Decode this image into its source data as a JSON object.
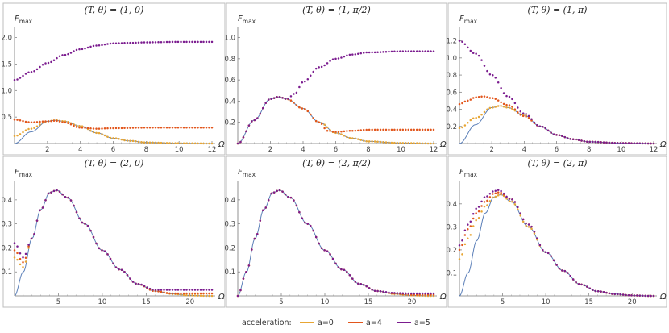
{
  "legend": {
    "title": "acceleration:",
    "entries": [
      {
        "label": "a=0",
        "color": "#E8A634"
      },
      {
        "label": "a=4",
        "color": "#E2561C"
      },
      {
        "label": "a=5",
        "color": "#7B1C8F"
      }
    ]
  },
  "reference_color": "#5B7FB8",
  "chart_data": [
    {
      "type": "line",
      "title": "(T, θ) = (1, 0)",
      "ylabel": "F",
      "ylabel_sub": "max",
      "xlabel": "Ω",
      "xlim": [
        0,
        12
      ],
      "ylim": [
        0,
        2.1
      ],
      "xticks": [
        "2",
        "4",
        "6",
        "8",
        "10",
        "12"
      ],
      "yticks": [
        "0.5",
        "1.0",
        "1.5",
        "2.0"
      ],
      "series": [
        {
          "name": "reference",
          "x": [
            0,
            1,
            2,
            2.5,
            3,
            4,
            5,
            6,
            7,
            8,
            10,
            12
          ],
          "values": [
            0,
            0.22,
            0.42,
            0.44,
            0.42,
            0.33,
            0.2,
            0.1,
            0.05,
            0.02,
            0.005,
            0
          ]
        },
        {
          "name": "a=0",
          "x": [
            0,
            1,
            2,
            2.5,
            3,
            4,
            5,
            6,
            7,
            8,
            10,
            12
          ],
          "values": [
            0.14,
            0.28,
            0.42,
            0.44,
            0.42,
            0.33,
            0.2,
            0.1,
            0.05,
            0.02,
            0.005,
            0
          ]
        },
        {
          "name": "a=4",
          "x": [
            0,
            1,
            2,
            2.5,
            3,
            4,
            5,
            6,
            8,
            10,
            12
          ],
          "values": [
            0.45,
            0.4,
            0.42,
            0.43,
            0.4,
            0.3,
            0.28,
            0.29,
            0.3,
            0.3,
            0.3
          ]
        },
        {
          "name": "a=5",
          "x": [
            0,
            1,
            2,
            3,
            4,
            5,
            6,
            7,
            8,
            10,
            12
          ],
          "values": [
            1.2,
            1.35,
            1.52,
            1.67,
            1.78,
            1.85,
            1.89,
            1.9,
            1.91,
            1.92,
            1.92
          ]
        }
      ]
    },
    {
      "type": "line",
      "title": "(T, θ) = (1, π/2)",
      "ylabel": "F",
      "ylabel_sub": "max",
      "xlabel": "Ω",
      "xlim": [
        0,
        12
      ],
      "ylim": [
        0,
        1.05
      ],
      "xticks": [
        "2",
        "4",
        "6",
        "8",
        "10",
        "12"
      ],
      "yticks": [
        "0.2",
        "0.4",
        "0.6",
        "0.8",
        "1.0"
      ],
      "series": [
        {
          "name": "reference",
          "x": [
            0,
            1,
            2,
            2.5,
            3,
            4,
            5,
            6,
            7,
            8,
            10,
            12
          ],
          "values": [
            0,
            0.22,
            0.42,
            0.44,
            0.42,
            0.33,
            0.2,
            0.1,
            0.05,
            0.02,
            0.005,
            0
          ]
        },
        {
          "name": "a=0",
          "x": [
            0,
            1,
            2,
            2.5,
            3,
            4,
            5,
            6,
            7,
            8,
            10,
            12
          ],
          "values": [
            0,
            0.22,
            0.42,
            0.44,
            0.42,
            0.33,
            0.2,
            0.1,
            0.05,
            0.02,
            0.005,
            0
          ]
        },
        {
          "name": "a=4",
          "x": [
            0,
            1,
            2,
            2.5,
            3,
            4,
            5,
            5.5,
            6,
            7,
            8,
            10,
            12
          ],
          "values": [
            0,
            0.22,
            0.42,
            0.44,
            0.42,
            0.33,
            0.2,
            0.12,
            0.11,
            0.12,
            0.13,
            0.13,
            0.13
          ]
        },
        {
          "name": "a=5",
          "x": [
            0,
            1,
            2,
            2.5,
            3,
            3.5,
            4,
            5,
            6,
            7,
            8,
            10,
            12
          ],
          "values": [
            0,
            0.22,
            0.42,
            0.44,
            0.42,
            0.47,
            0.58,
            0.72,
            0.8,
            0.84,
            0.86,
            0.87,
            0.87
          ]
        }
      ]
    },
    {
      "type": "line",
      "title": "(T, θ) = (1, π)",
      "ylabel": "F",
      "ylabel_sub": "max",
      "xlabel": "Ω",
      "xlim": [
        0,
        12
      ],
      "ylim": [
        0,
        1.3
      ],
      "xticks": [
        "2",
        "4",
        "6",
        "8",
        "10",
        "12"
      ],
      "yticks": [
        "0.2",
        "0.4",
        "0.6",
        "0.8",
        "1.0",
        "1.2"
      ],
      "series": [
        {
          "name": "reference",
          "x": [
            0,
            1,
            2,
            2.5,
            3,
            4,
            5,
            6,
            7,
            8,
            10,
            12
          ],
          "values": [
            0,
            0.22,
            0.42,
            0.44,
            0.42,
            0.33,
            0.2,
            0.1,
            0.05,
            0.02,
            0.005,
            0
          ]
        },
        {
          "name": "a=0",
          "x": [
            0,
            1,
            2,
            2.5,
            3,
            4,
            5,
            6,
            7,
            8,
            10,
            12
          ],
          "values": [
            0.18,
            0.3,
            0.42,
            0.44,
            0.42,
            0.33,
            0.2,
            0.1,
            0.05,
            0.02,
            0.005,
            0
          ]
        },
        {
          "name": "a=4",
          "x": [
            0,
            0.5,
            1,
            1.5,
            2,
            3,
            4,
            5,
            6,
            7,
            8,
            10,
            12
          ],
          "values": [
            0.46,
            0.5,
            0.54,
            0.55,
            0.53,
            0.45,
            0.32,
            0.2,
            0.1,
            0.05,
            0.02,
            0.005,
            0
          ]
        },
        {
          "name": "a=5",
          "x": [
            0,
            1,
            2,
            3,
            4,
            5,
            6,
            7,
            8,
            10,
            12
          ],
          "values": [
            1.2,
            1.05,
            0.8,
            0.55,
            0.35,
            0.2,
            0.1,
            0.05,
            0.02,
            0.005,
            0
          ]
        }
      ]
    },
    {
      "type": "line",
      "title": "(T, θ) = (2, 0)",
      "ylabel": "F",
      "ylabel_sub": "max",
      "xlabel": "Ω",
      "xlim": [
        0,
        22.5
      ],
      "ylim": [
        0,
        0.46
      ],
      "xticks": [
        "5",
        "10",
        "15",
        "20"
      ],
      "yticks": [
        "0.1",
        "0.2",
        "0.3",
        "0.4"
      ],
      "series": [
        {
          "name": "reference",
          "x": [
            0,
            1,
            2,
            3,
            4,
            4.8,
            6,
            8,
            10,
            12,
            14,
            16,
            18,
            20,
            22
          ],
          "values": [
            0,
            0.1,
            0.24,
            0.36,
            0.43,
            0.44,
            0.41,
            0.3,
            0.19,
            0.11,
            0.05,
            0.02,
            0.008,
            0.002,
            0
          ]
        },
        {
          "name": "a=0",
          "x": [
            0,
            1,
            2,
            3,
            4,
            4.8,
            6,
            8,
            10,
            12,
            14,
            16,
            18,
            20,
            22
          ],
          "values": [
            0.16,
            0.12,
            0.24,
            0.36,
            0.43,
            0.44,
            0.41,
            0.3,
            0.19,
            0.11,
            0.05,
            0.02,
            0.008,
            0.002,
            0
          ]
        },
        {
          "name": "a=4",
          "x": [
            0,
            1,
            2,
            3,
            4,
            4.8,
            6,
            8,
            10,
            12,
            14,
            16,
            18,
            20,
            22
          ],
          "values": [
            0.19,
            0.14,
            0.24,
            0.36,
            0.43,
            0.44,
            0.41,
            0.3,
            0.19,
            0.11,
            0.05,
            0.02,
            0.01,
            0.01,
            0.01
          ]
        },
        {
          "name": "a=5",
          "x": [
            0,
            1,
            2,
            3,
            4,
            4.8,
            6,
            8,
            10,
            12,
            14,
            16,
            18,
            20,
            22
          ],
          "values": [
            0.22,
            0.16,
            0.24,
            0.36,
            0.43,
            0.44,
            0.41,
            0.3,
            0.19,
            0.11,
            0.05,
            0.025,
            0.025,
            0.025,
            0.025
          ]
        }
      ]
    },
    {
      "type": "line",
      "title": "(T, θ) = (2, π/2)",
      "ylabel": "F",
      "ylabel_sub": "max",
      "xlabel": "Ω",
      "xlim": [
        0,
        22.5
      ],
      "ylim": [
        0,
        0.46
      ],
      "xticks": [
        "5",
        "10",
        "15",
        "20"
      ],
      "yticks": [
        "0.1",
        "0.2",
        "0.3",
        "0.4"
      ],
      "series": [
        {
          "name": "reference",
          "x": [
            0,
            1,
            2,
            3,
            4,
            4.8,
            6,
            8,
            10,
            12,
            14,
            16,
            18,
            20,
            22
          ],
          "values": [
            0,
            0.1,
            0.24,
            0.36,
            0.43,
            0.44,
            0.41,
            0.3,
            0.19,
            0.11,
            0.05,
            0.02,
            0.008,
            0.002,
            0
          ]
        },
        {
          "name": "a=0",
          "x": [
            0,
            1,
            2,
            3,
            4,
            4.8,
            6,
            8,
            10,
            12,
            14,
            16,
            18,
            20,
            22
          ],
          "values": [
            0,
            0.1,
            0.24,
            0.36,
            0.43,
            0.44,
            0.41,
            0.3,
            0.19,
            0.11,
            0.05,
            0.02,
            0.008,
            0.002,
            0
          ]
        },
        {
          "name": "a=4",
          "x": [
            0,
            1,
            2,
            3,
            4,
            4.8,
            6,
            8,
            10,
            12,
            14,
            16,
            18,
            20,
            22
          ],
          "values": [
            0,
            0.1,
            0.24,
            0.36,
            0.43,
            0.44,
            0.41,
            0.3,
            0.19,
            0.11,
            0.05,
            0.02,
            0.01,
            0.005,
            0.005
          ]
        },
        {
          "name": "a=5",
          "x": [
            0,
            1,
            2,
            3,
            4,
            4.8,
            6,
            8,
            10,
            12,
            14,
            16,
            18,
            20,
            22
          ],
          "values": [
            0,
            0.1,
            0.24,
            0.36,
            0.43,
            0.44,
            0.41,
            0.3,
            0.19,
            0.11,
            0.05,
            0.02,
            0.012,
            0.01,
            0.01
          ]
        }
      ]
    },
    {
      "type": "line",
      "title": "(T, θ) = (2, π)",
      "ylabel": "F",
      "ylabel_sub": "max",
      "xlabel": "Ω",
      "xlim": [
        0,
        22.5
      ],
      "ylim": [
        0,
        0.48
      ],
      "xticks": [
        "5",
        "10",
        "15",
        "20"
      ],
      "yticks": [
        "0.1",
        "0.2",
        "0.3",
        "0.4"
      ],
      "series": [
        {
          "name": "reference",
          "x": [
            0,
            1,
            2,
            3,
            4,
            4.8,
            6,
            8,
            10,
            12,
            14,
            16,
            18,
            20,
            22
          ],
          "values": [
            0,
            0.1,
            0.24,
            0.36,
            0.43,
            0.44,
            0.41,
            0.3,
            0.19,
            0.11,
            0.05,
            0.02,
            0.008,
            0.002,
            0
          ]
        },
        {
          "name": "a=0",
          "x": [
            0,
            1,
            2,
            3,
            4,
            4.8,
            6,
            8,
            10,
            12,
            14,
            16,
            18,
            20,
            22
          ],
          "values": [
            0.16,
            0.25,
            0.33,
            0.39,
            0.43,
            0.44,
            0.41,
            0.3,
            0.19,
            0.11,
            0.05,
            0.02,
            0.008,
            0.002,
            0
          ]
        },
        {
          "name": "a=4",
          "x": [
            0,
            1,
            2,
            3,
            4,
            4.6,
            6,
            8,
            10,
            12,
            14,
            16,
            18,
            20,
            22
          ],
          "values": [
            0.2,
            0.29,
            0.36,
            0.41,
            0.445,
            0.45,
            0.42,
            0.31,
            0.19,
            0.11,
            0.05,
            0.02,
            0.008,
            0.002,
            0
          ]
        },
        {
          "name": "a=5",
          "x": [
            0,
            1,
            2,
            3,
            4,
            4.5,
            6,
            8,
            10,
            12,
            14,
            16,
            18,
            20,
            22
          ],
          "values": [
            0.22,
            0.31,
            0.38,
            0.43,
            0.455,
            0.46,
            0.42,
            0.31,
            0.19,
            0.11,
            0.05,
            0.02,
            0.008,
            0.002,
            0
          ]
        }
      ]
    }
  ]
}
